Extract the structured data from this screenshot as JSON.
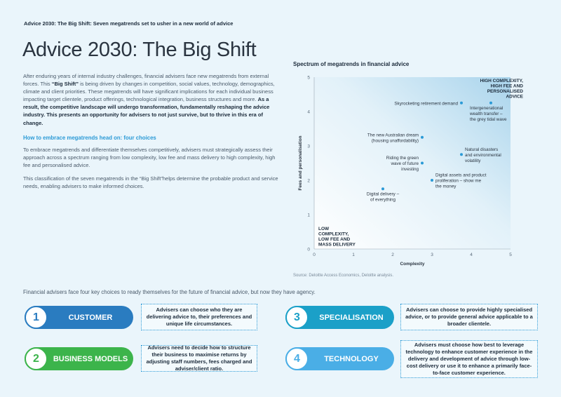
{
  "header": {
    "subtitle": "Advice 2030: The Big Shift: Seven megatrends set to usher in a new world of advice",
    "title": "Advice 2030: The Big Shift"
  },
  "intro": {
    "p1_a": "After enduring years of internal industry challenges, financial advisers face new megatrends from external forces. This ",
    "p1_b": "“Big Shift”",
    "p1_c": " is being driven by changes in competition, social values, technology, demographics, climate and client priorities. These megatrends will have significant implications for each individual business impacting target clientele, product offerings, technological integration, business structures and more. ",
    "p1_d": "As a result, the competitive landscape will undergo transformation, fundamentally reshaping the advice industry. This presents an opportunity for advisers to not just survive, but to thrive in this era of change.",
    "how_heading": "How to embrace megatrends head on: four choices",
    "p2": "To embrace megatrends and differentiate themselves competitively, advisers must strategically assess their approach across a spectrum ranging from low complexity, low fee and mass delivery to high complexity, high fee and personalised advice.",
    "p3": "This classification of the seven megatrends in the “Big Shift”helps determine the probable product and service needs, enabling advisers to make informed choices."
  },
  "chart_data": {
    "type": "scatter",
    "title": "Spectrum of megatrends in financial advice",
    "xlabel": "Complexity",
    "ylabel": "Fees and personalisation",
    "xlim": [
      0,
      5
    ],
    "ylim": [
      0,
      5
    ],
    "x_ticks": [
      "0",
      "1",
      "2",
      "3",
      "4",
      "5"
    ],
    "y_ticks": [
      "0",
      "1",
      "2",
      "3",
      "4",
      "5"
    ],
    "corner_high": [
      "HIGH COMPLEXITY,",
      "HIGH FEE AND",
      "PERSONALISED",
      "ADVICE"
    ],
    "corner_low": [
      "LOW",
      "COMPLEXITY,",
      "LOW FEE AND",
      "MASS DELIVERY"
    ],
    "points": [
      {
        "x": 3.75,
        "y": 4.25,
        "label": [
          "Skyrocketing retirement demand"
        ],
        "anchor": "end"
      },
      {
        "x": 4.5,
        "y": 4.25,
        "label": [
          "Intergenerational",
          "wealth transfer –",
          "the grey tidal wave"
        ],
        "anchor": "start-below"
      },
      {
        "x": 2.75,
        "y": 3.25,
        "label": [
          "The new Australian dream",
          "(housing unaffordability)"
        ],
        "anchor": "end"
      },
      {
        "x": 3.75,
        "y": 2.75,
        "label": [
          "Natural disasters",
          "and environmental",
          "volatility"
        ],
        "anchor": "start"
      },
      {
        "x": 2.75,
        "y": 2.5,
        "label": [
          "Riding the green",
          "wave of future",
          "investing"
        ],
        "anchor": "end"
      },
      {
        "x": 3.0,
        "y": 2.0,
        "label": [
          "Digital assets and product",
          "proliferation – show me",
          "the money"
        ],
        "anchor": "start"
      },
      {
        "x": 1.75,
        "y": 1.75,
        "label": [
          "Digital delivery –",
          "of everything"
        ],
        "anchor": "middle-below"
      }
    ],
    "source": "Source: Deloitte Access Economics, Deloitte analysis."
  },
  "choices": {
    "intro": "Financial advisers face four key choices to ready themselves for the future of financial advice, but now they have agency.",
    "items": [
      {
        "num": "1",
        "label": "CUSTOMER",
        "color": "#2a7cc0",
        "text": "Advisers can choose who they are delivering advice to, their preferences and unique life circumstances."
      },
      {
        "num": "2",
        "label": "BUSINESS MODELS",
        "color": "#3cb44b",
        "text": "Advisers need to decide how to structure their business to maximise returns by adjusting staff numbers, fees charged and adviser/client ratio."
      },
      {
        "num": "3",
        "label": "SPECIALISATION",
        "color": "#1ba0c8",
        "text": "Advisers can choose to provide highly specialised advice, or to provide general advice applicable to a broader clientele."
      },
      {
        "num": "4",
        "label": "TECHNOLOGY",
        "color": "#4aaee6",
        "text": "Advisers must choose how best to leverage technology to enhance customer experience in the delivery and development of advice through low-cost delivery or use it to enhance a primarily face-to-face customer experience."
      }
    ]
  }
}
